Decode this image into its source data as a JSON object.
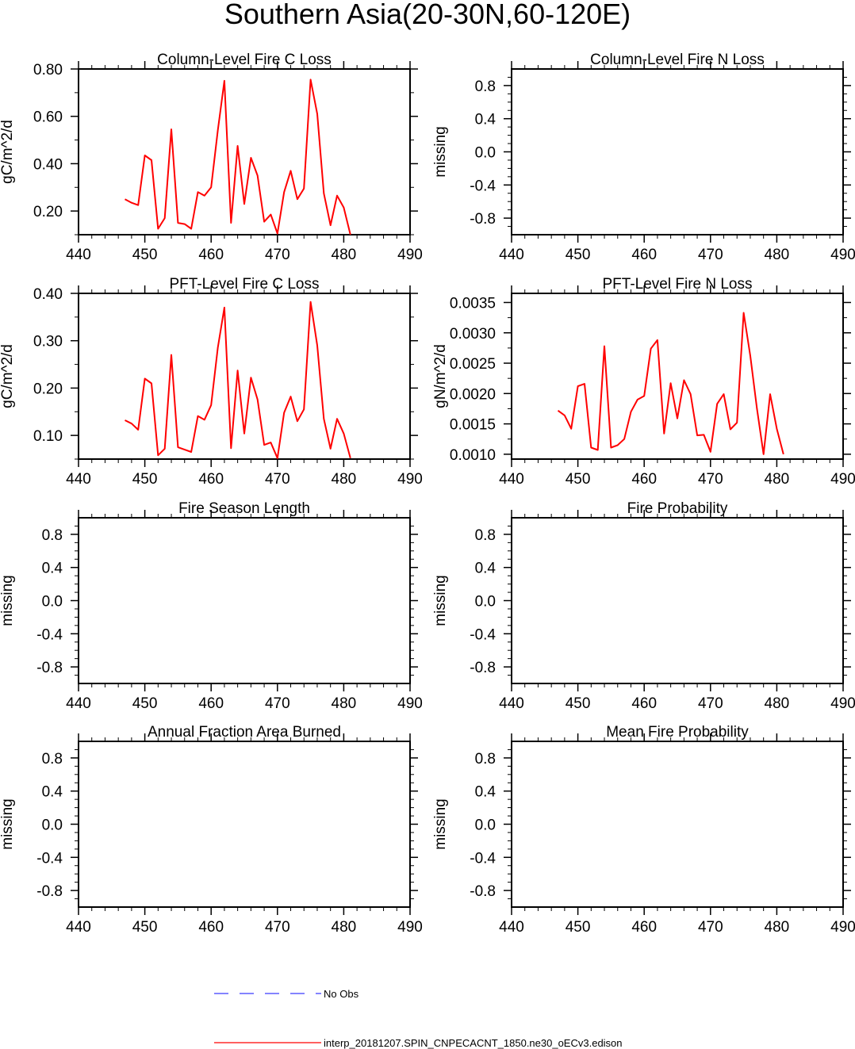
{
  "figure": {
    "title": "Southern Asia(20-30N,60-120E)"
  },
  "legend": {
    "items": [
      {
        "label": "No Obs",
        "color": "#3b3bff",
        "style": "dashed"
      },
      {
        "label": "interp_20181207.SPIN_CNPECACNT_1850.ne30_oECv3.edison",
        "color": "#ff0000",
        "style": "solid"
      }
    ]
  },
  "chart_data": [
    {
      "type": "line",
      "title": "Column-Level Fire C Loss",
      "ylabel": "gC/m^2/d",
      "xlim": [
        440,
        490
      ],
      "ylim": [
        0.1,
        0.8
      ],
      "xticks": [
        440,
        450,
        460,
        470,
        480,
        490
      ],
      "xtick_labels": [
        "440",
        "450",
        "460",
        "470",
        "480",
        "490"
      ],
      "yticks": [
        0.2,
        0.4,
        0.6,
        0.8
      ],
      "ytick_labels": [
        "0.20",
        "0.40",
        "0.60",
        "0.80"
      ],
      "yminor": [
        0.1,
        0.3,
        0.5,
        0.7
      ],
      "series": [
        {
          "color": "#ff0000",
          "x": [
            447,
            448,
            449,
            450,
            451,
            452,
            453,
            454,
            455,
            456,
            457,
            458,
            459,
            460,
            461,
            462,
            463,
            464,
            465,
            466,
            467,
            468,
            469,
            470,
            471,
            472,
            473,
            474,
            475,
            476,
            477,
            478,
            479,
            480,
            481
          ],
          "y": [
            0.25,
            0.235,
            0.225,
            0.435,
            0.415,
            0.125,
            0.17,
            0.545,
            0.15,
            0.145,
            0.125,
            0.28,
            0.265,
            0.3,
            0.54,
            0.75,
            0.15,
            0.475,
            0.23,
            0.425,
            0.35,
            0.155,
            0.185,
            0.105,
            0.28,
            0.37,
            0.25,
            0.295,
            0.755,
            0.61,
            0.275,
            0.14,
            0.265,
            0.215,
            0.1
          ]
        }
      ]
    },
    {
      "type": "line",
      "title": "Column-Level Fire N Loss",
      "ylabel": "missing",
      "xlim": [
        440,
        490
      ],
      "ylim": [
        -1.0,
        1.0
      ],
      "xticks": [
        440,
        450,
        460,
        470,
        480,
        490
      ],
      "xtick_labels": [
        "440",
        "450",
        "460",
        "470",
        "480",
        "490"
      ],
      "yticks": [
        -0.8,
        -0.4,
        0.0,
        0.4,
        0.8
      ],
      "ytick_labels": [
        "-0.8",
        "-0.4",
        "0.0",
        "0.4",
        "0.8"
      ],
      "yminor": [
        -0.9,
        -0.7,
        -0.6,
        -0.5,
        -0.3,
        -0.2,
        -0.1,
        0.1,
        0.2,
        0.3,
        0.5,
        0.6,
        0.7,
        0.9
      ],
      "series": []
    },
    {
      "type": "line",
      "title": "PFT-Level Fire C Loss",
      "ylabel": "gC/m^2/d",
      "xlim": [
        440,
        490
      ],
      "ylim": [
        0.05,
        0.4
      ],
      "xticks": [
        440,
        450,
        460,
        470,
        480,
        490
      ],
      "xtick_labels": [
        "440",
        "450",
        "460",
        "470",
        "480",
        "490"
      ],
      "yticks": [
        0.1,
        0.2,
        0.3,
        0.4
      ],
      "ytick_labels": [
        "0.10",
        "0.20",
        "0.30",
        "0.40"
      ],
      "yminor": [
        0.05,
        0.15,
        0.25,
        0.35
      ],
      "series": [
        {
          "color": "#ff0000",
          "x": [
            447,
            448,
            449,
            450,
            451,
            452,
            453,
            454,
            455,
            456,
            457,
            458,
            459,
            460,
            461,
            462,
            463,
            464,
            465,
            466,
            467,
            468,
            469,
            470,
            471,
            472,
            473,
            474,
            475,
            476,
            477,
            478,
            479,
            480,
            481
          ],
          "y": [
            0.132,
            0.125,
            0.112,
            0.22,
            0.21,
            0.058,
            0.072,
            0.27,
            0.075,
            0.07,
            0.065,
            0.141,
            0.133,
            0.164,
            0.285,
            0.37,
            0.073,
            0.237,
            0.104,
            0.222,
            0.176,
            0.08,
            0.085,
            0.052,
            0.148,
            0.182,
            0.13,
            0.155,
            0.382,
            0.29,
            0.135,
            0.072,
            0.135,
            0.104,
            0.052
          ]
        }
      ]
    },
    {
      "type": "line",
      "title": "PFT-Level Fire N Loss",
      "ylabel": "gN/m^2/d",
      "xlim": [
        440,
        490
      ],
      "ylim": [
        0.00092,
        0.00365
      ],
      "xticks": [
        440,
        450,
        460,
        470,
        480,
        490
      ],
      "xtick_labels": [
        "440",
        "450",
        "460",
        "470",
        "480",
        "490"
      ],
      "yticks": [
        0.001,
        0.0015,
        0.002,
        0.0025,
        0.003,
        0.0035
      ],
      "ytick_labels": [
        "0.0010",
        "0.0015",
        "0.0020",
        "0.0025",
        "0.0030",
        "0.0035"
      ],
      "yminor": [
        0.00125,
        0.00175,
        0.00225,
        0.00275,
        0.00325
      ],
      "series": [
        {
          "color": "#ff0000",
          "x": [
            447,
            448,
            449,
            450,
            451,
            452,
            453,
            454,
            455,
            456,
            457,
            458,
            459,
            460,
            461,
            462,
            463,
            464,
            465,
            466,
            467,
            468,
            469,
            470,
            471,
            472,
            473,
            474,
            475,
            476,
            477,
            478,
            479,
            480,
            481
          ],
          "y": [
            0.00172,
            0.00164,
            0.00142,
            0.00212,
            0.00216,
            0.00111,
            0.00107,
            0.00278,
            0.00111,
            0.00115,
            0.00125,
            0.0017,
            0.0019,
            0.00196,
            0.00274,
            0.00288,
            0.00134,
            0.00217,
            0.00159,
            0.00222,
            0.00199,
            0.00131,
            0.00132,
            0.00104,
            0.00183,
            0.00199,
            0.00141,
            0.00152,
            0.00333,
            0.00262,
            0.00176,
            0.001,
            0.00199,
            0.00142,
            0.001
          ]
        }
      ]
    },
    {
      "type": "line",
      "title": "Fire Season Length",
      "ylabel": "missing",
      "xlim": [
        440,
        490
      ],
      "ylim": [
        -1.0,
        1.0
      ],
      "xticks": [
        440,
        450,
        460,
        470,
        480,
        490
      ],
      "xtick_labels": [
        "440",
        "450",
        "460",
        "470",
        "480",
        "490"
      ],
      "yticks": [
        -0.8,
        -0.4,
        0.0,
        0.4,
        0.8
      ],
      "ytick_labels": [
        "-0.8",
        "-0.4",
        "0.0",
        "0.4",
        "0.8"
      ],
      "yminor": [
        -0.9,
        -0.7,
        -0.6,
        -0.5,
        -0.3,
        -0.2,
        -0.1,
        0.1,
        0.2,
        0.3,
        0.5,
        0.6,
        0.7,
        0.9
      ],
      "series": []
    },
    {
      "type": "line",
      "title": "Fire Probability",
      "ylabel": "missing",
      "xlim": [
        440,
        490
      ],
      "ylim": [
        -1.0,
        1.0
      ],
      "xticks": [
        440,
        450,
        460,
        470,
        480,
        490
      ],
      "xtick_labels": [
        "440",
        "450",
        "460",
        "470",
        "480",
        "490"
      ],
      "yticks": [
        -0.8,
        -0.4,
        0.0,
        0.4,
        0.8
      ],
      "ytick_labels": [
        "-0.8",
        "-0.4",
        "0.0",
        "0.4",
        "0.8"
      ],
      "yminor": [
        -0.9,
        -0.7,
        -0.6,
        -0.5,
        -0.3,
        -0.2,
        -0.1,
        0.1,
        0.2,
        0.3,
        0.5,
        0.6,
        0.7,
        0.9
      ],
      "series": []
    },
    {
      "type": "line",
      "title": "Annual Fraction Area Burned",
      "ylabel": "missing",
      "xlim": [
        440,
        490
      ],
      "ylim": [
        -1.0,
        1.0
      ],
      "xticks": [
        440,
        450,
        460,
        470,
        480,
        490
      ],
      "xtick_labels": [
        "440",
        "450",
        "460",
        "470",
        "480",
        "490"
      ],
      "yticks": [
        -0.8,
        -0.4,
        0.0,
        0.4,
        0.8
      ],
      "ytick_labels": [
        "-0.8",
        "-0.4",
        "0.0",
        "0.4",
        "0.8"
      ],
      "yminor": [
        -0.9,
        -0.7,
        -0.6,
        -0.5,
        -0.3,
        -0.2,
        -0.1,
        0.1,
        0.2,
        0.3,
        0.5,
        0.6,
        0.7,
        0.9
      ],
      "series": []
    },
    {
      "type": "line",
      "title": "Mean Fire Probability",
      "ylabel": "missing",
      "xlim": [
        440,
        490
      ],
      "ylim": [
        -1.0,
        1.0
      ],
      "xticks": [
        440,
        450,
        460,
        470,
        480,
        490
      ],
      "xtick_labels": [
        "440",
        "450",
        "460",
        "470",
        "480",
        "490"
      ],
      "yticks": [
        -0.8,
        -0.4,
        0.0,
        0.4,
        0.8
      ],
      "ytick_labels": [
        "-0.8",
        "-0.4",
        "0.0",
        "0.4",
        "0.8"
      ],
      "yminor": [
        -0.9,
        -0.7,
        -0.6,
        -0.5,
        -0.3,
        -0.2,
        -0.1,
        0.1,
        0.2,
        0.3,
        0.5,
        0.6,
        0.7,
        0.9
      ],
      "series": []
    }
  ]
}
